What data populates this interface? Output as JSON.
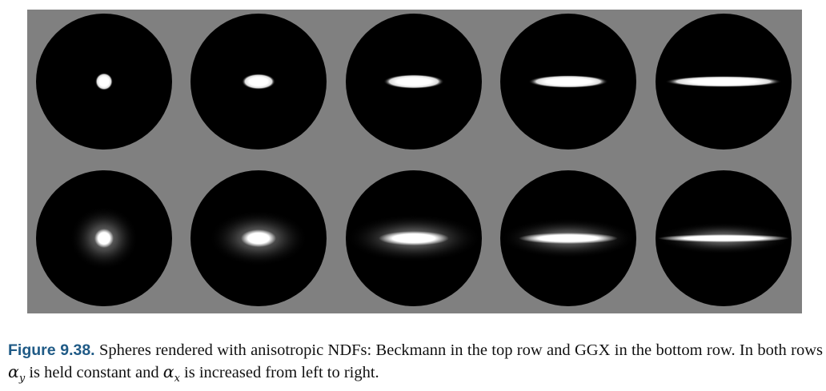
{
  "figure": {
    "rows": [
      {
        "row_label": "Beckmann",
        "spheres": [
          {
            "alpha_x_level": 1
          },
          {
            "alpha_x_level": 2
          },
          {
            "alpha_x_level": 3
          },
          {
            "alpha_x_level": 4
          },
          {
            "alpha_x_level": 5
          }
        ]
      },
      {
        "row_label": "GGX",
        "spheres": [
          {
            "alpha_x_level": 1
          },
          {
            "alpha_x_level": 2
          },
          {
            "alpha_x_level": 3
          },
          {
            "alpha_x_level": 4
          },
          {
            "alpha_x_level": 5
          }
        ]
      }
    ],
    "background_color": "#808080",
    "sphere_color": "#000000",
    "highlight_color": "#ffffff"
  },
  "caption": {
    "label": "Figure 9.38.",
    "text_part1": "Spheres rendered with anisotropic NDFs: Beckmann in the top row and GGX in the bottom row. In both rows",
    "alpha_y_symbol": "α",
    "alpha_y_sub": "y",
    "text_part2": "is held constant and",
    "alpha_x_symbol": "α",
    "alpha_x_sub": "x",
    "text_part3": "is increased from left to right.",
    "label_color": "#1f5a86"
  }
}
